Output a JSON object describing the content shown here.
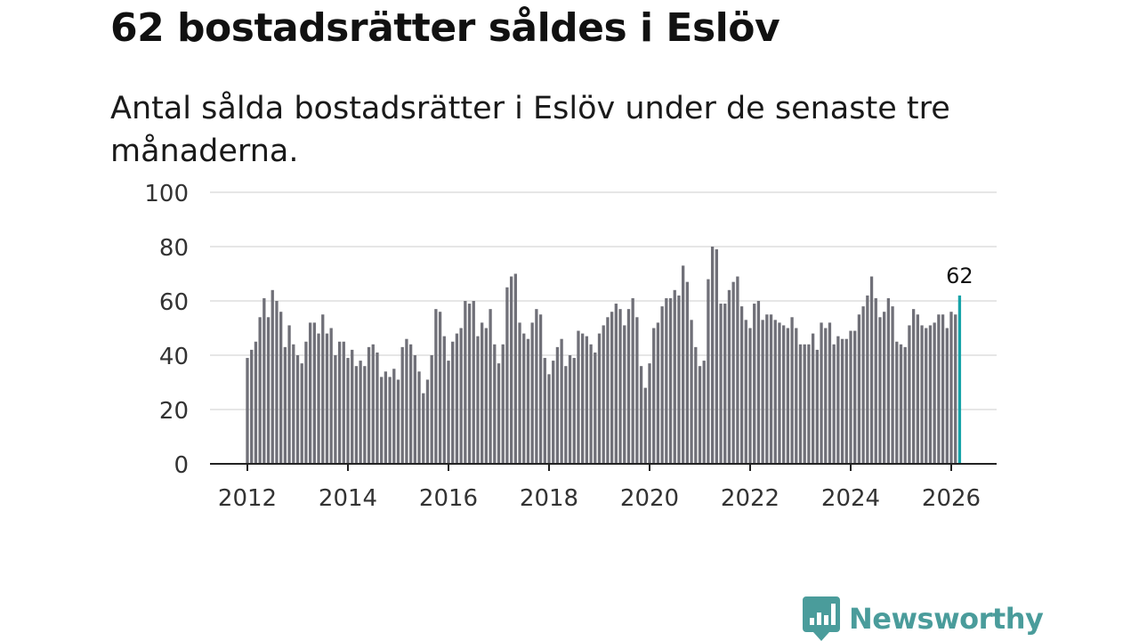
{
  "header": {
    "title": "62 bostadsrätter såldes i Eslöv",
    "subtitle": "Antal sålda bostadsrätter i Eslöv under de senaste tre månaderna."
  },
  "brand": {
    "name": "Newsworthy",
    "color": "#4a9c9b"
  },
  "chart_data": {
    "type": "bar",
    "title": "62 bostadsrätter såldes i Eslöv",
    "subtitle": "Antal sålda bostadsrätter i Eslöv under de senaste tre månaderna.",
    "xlabel": "",
    "ylabel": "",
    "ylim": [
      0,
      100
    ],
    "yticks": [
      0,
      20,
      40,
      60,
      80,
      100
    ],
    "xticks": [
      "2012",
      "2014",
      "2016",
      "2018",
      "2020",
      "2022",
      "2024",
      "2026"
    ],
    "x_start": "2012-01",
    "frequency": "monthly",
    "grid": true,
    "bar_color": "#707078",
    "highlight_color": "#17a3a8",
    "highlight_label": "62",
    "values": [
      39,
      42,
      45,
      54,
      61,
      54,
      64,
      60,
      56,
      43,
      51,
      44,
      40,
      37,
      45,
      52,
      52,
      48,
      55,
      48,
      50,
      40,
      45,
      45,
      39,
      42,
      36,
      38,
      36,
      43,
      44,
      41,
      32,
      34,
      32,
      35,
      31,
      43,
      46,
      44,
      40,
      34,
      26,
      31,
      40,
      57,
      56,
      47,
      38,
      45,
      48,
      50,
      60,
      59,
      60,
      47,
      52,
      50,
      57,
      44,
      37,
      44,
      65,
      69,
      70,
      52,
      48,
      46,
      52,
      57,
      55,
      39,
      33,
      38,
      43,
      46,
      36,
      40,
      39,
      49,
      48,
      47,
      44,
      41,
      48,
      51,
      54,
      56,
      59,
      57,
      51,
      57,
      61,
      54,
      36,
      28,
      37,
      50,
      52,
      58,
      61,
      61,
      64,
      62,
      73,
      67,
      53,
      43,
      36,
      38,
      68,
      80,
      79,
      59,
      59,
      64,
      67,
      69,
      58,
      53,
      50,
      59,
      60,
      53,
      55,
      55,
      53,
      52,
      51,
      50,
      54,
      50,
      44,
      44,
      44,
      48,
      42,
      52,
      50,
      52,
      44,
      47,
      46,
      46,
      49,
      49,
      55,
      58,
      62,
      69,
      61,
      54,
      56,
      61,
      58,
      45,
      44,
      43,
      51,
      57,
      55,
      51,
      50,
      51,
      52,
      55,
      55,
      50,
      56,
      55,
      62
    ]
  }
}
